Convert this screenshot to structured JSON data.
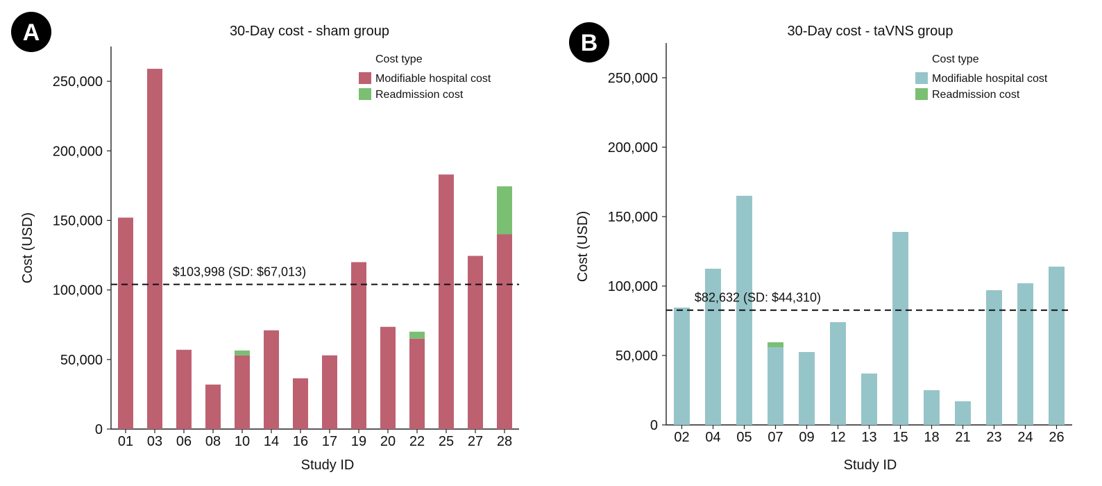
{
  "chart_data": [
    {
      "type": "bar",
      "panel": "A",
      "title": "30-Day cost - sham group",
      "xlabel": "Study ID",
      "ylabel": "Cost (USD)",
      "ylim": [
        0,
        275000
      ],
      "yticks": [
        0,
        50000,
        100000,
        150000,
        200000,
        250000
      ],
      "ytick_labels": [
        "0",
        "50,000",
        "100,000",
        "150,000",
        "200,000",
        "250,000"
      ],
      "legend_title": "Cost type",
      "legend_position": "top-right",
      "categories": [
        "01",
        "03",
        "06",
        "08",
        "10",
        "14",
        "16",
        "17",
        "19",
        "20",
        "22",
        "25",
        "27",
        "28"
      ],
      "stacked": true,
      "series": [
        {
          "name": "Modifiable hospital cost",
          "color": "#bd6171",
          "values": [
            152000,
            259000,
            57000,
            32000,
            53000,
            71000,
            36500,
            53000,
            120000,
            73500,
            65000,
            183000,
            124500,
            140000
          ]
        },
        {
          "name": "Readmission cost",
          "color": "#7abf72",
          "values": [
            0,
            0,
            0,
            0,
            3500,
            0,
            0,
            0,
            0,
            0,
            5000,
            0,
            0,
            34500
          ]
        }
      ],
      "mean_line": {
        "value": 103998,
        "label": "$103,998 (SD: $67,013)"
      }
    },
    {
      "type": "bar",
      "panel": "B",
      "title": "30-Day cost - taVNS group",
      "xlabel": "Study ID",
      "ylabel": "Cost (USD)",
      "ylim": [
        0,
        275000
      ],
      "yticks": [
        0,
        50000,
        100000,
        150000,
        200000,
        250000
      ],
      "ytick_labels": [
        "0",
        "50,000",
        "100,000",
        "150,000",
        "200,000",
        "250,000"
      ],
      "legend_title": "Cost type",
      "legend_position": "top-right",
      "categories": [
        "02",
        "04",
        "05",
        "07",
        "09",
        "12",
        "13",
        "15",
        "18",
        "21",
        "23",
        "24",
        "26"
      ],
      "stacked": true,
      "series": [
        {
          "name": "Modifiable hospital cost",
          "color": "#96c5c9",
          "values": [
            84500,
            112500,
            165000,
            56000,
            52500,
            74000,
            37000,
            139000,
            25000,
            17000,
            97000,
            102000,
            114000
          ]
        },
        {
          "name": "Readmission cost",
          "color": "#7abf72",
          "values": [
            0,
            0,
            0,
            3500,
            0,
            0,
            0,
            0,
            0,
            0,
            0,
            0,
            0
          ]
        }
      ],
      "mean_line": {
        "value": 82632,
        "label": "$82,632 (SD: $44,310)"
      }
    }
  ]
}
